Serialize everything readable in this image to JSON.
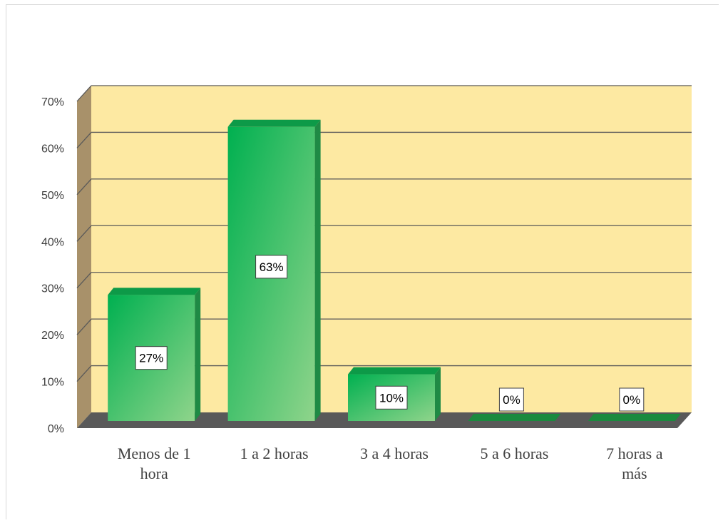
{
  "chart_data": {
    "type": "bar",
    "categories": [
      [
        "Menos de 1",
        "hora"
      ],
      [
        "1 a 2 horas"
      ],
      [
        "3 a 4 horas"
      ],
      [
        "5 a 6 horas"
      ],
      [
        "7 horas a",
        "más"
      ]
    ],
    "values": [
      27,
      63,
      10,
      0,
      0
    ],
    "data_labels": [
      "27%",
      "63%",
      "10%",
      "0%",
      "0%"
    ],
    "y_ticks": [
      "0%",
      "10%",
      "20%",
      "30%",
      "40%",
      "50%",
      "60%",
      "70%"
    ],
    "ylim": [
      0,
      70
    ],
    "grid": true,
    "title": "",
    "xlabel": "",
    "ylabel": "",
    "style": "3d",
    "colors": {
      "wall": "#fde9a2",
      "side_wall": "#a8916a",
      "floor": "#595959",
      "gridline": "#595959",
      "bar_dark": "#00b050",
      "bar_light": "#8fd48b"
    }
  }
}
